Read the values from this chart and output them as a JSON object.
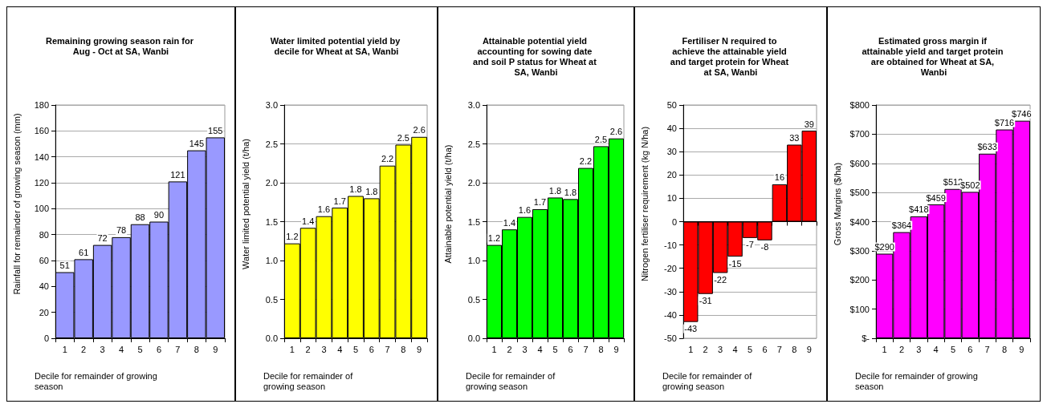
{
  "chart_data": [
    {
      "type": "bar",
      "title": "Remaining growing season rain for Aug - Oct at SA, Wanbi",
      "xlabel": "Decile for remainder of growing season",
      "ylabel": "Rainfall for remainder of growing season (mm)",
      "categories": [
        "1",
        "2",
        "3",
        "4",
        "5",
        "6",
        "7",
        "8",
        "9"
      ],
      "values": [
        51,
        61,
        72,
        78,
        88,
        90,
        121,
        145,
        155
      ],
      "color": "#9999ff",
      "ylim": [
        0,
        180
      ],
      "yticks": [
        0,
        20,
        40,
        60,
        80,
        100,
        120,
        140,
        160,
        180
      ],
      "grid": "y",
      "data_labels": true
    },
    {
      "type": "bar",
      "title": "Water limited potential yield by decile for Wheat at SA, Wanbi",
      "xlabel": "Decile for remainder of growing season",
      "ylabel": "Water limited potential yield (t/ha)",
      "categories": [
        "1",
        "2",
        "3",
        "4",
        "5",
        "6",
        "7",
        "8",
        "9"
      ],
      "values": [
        1.22,
        1.42,
        1.57,
        1.68,
        1.83,
        1.8,
        2.22,
        2.49,
        2.59
      ],
      "value_labels": [
        "1.2",
        "1.4",
        "1.6",
        "1.7",
        "1.8",
        "1.8",
        "2.2",
        "2.5",
        "2.6"
      ],
      "color": "#ffff00",
      "ylim": [
        0,
        3
      ],
      "yticks": [
        {
          "value": 0,
          "label": "0.0"
        },
        0.5,
        {
          "value": 1,
          "label": "1.0"
        },
        1.5,
        {
          "value": 2,
          "label": "2.0"
        },
        2.5,
        {
          "value": 3,
          "label": "3.0"
        }
      ],
      "grid": "y"
    },
    {
      "type": "bar",
      "title": "Attainable potential yield accounting for sowing date and soil P status for Wheat at SA, Wanbi",
      "xlabel": "Decile for remainder of growing season",
      "ylabel": "Attainable potential yield (t/ha)",
      "categories": [
        "1",
        "2",
        "3",
        "4",
        "5",
        "6",
        "7",
        "8",
        "9"
      ],
      "values": [
        1.2,
        1.4,
        1.56,
        1.66,
        1.81,
        1.79,
        2.19,
        2.47,
        2.57
      ],
      "value_labels": [
        "1.2",
        "1.4",
        "1.6",
        "1.7",
        "1.8",
        "1.8",
        "2.2",
        "2.5",
        "2.6"
      ],
      "color": "#00ff00",
      "ylim": [
        0,
        3
      ],
      "yticks": [
        {
          "value": 0,
          "label": "0.0"
        },
        0.5,
        {
          "value": 1,
          "label": "1.0"
        },
        1.5,
        {
          "value": 2,
          "label": "2.0"
        },
        2.5,
        {
          "value": 3,
          "label": "3.0"
        }
      ],
      "grid": "y"
    },
    {
      "type": "bar",
      "title": "Fertiliser N required to achieve the attainable yield and target protein for Wheat at SA, Wanbi",
      "xlabel": "Decile for remainder of growing season",
      "ylabel": "Nitrogen fertiliser requirement (kg N/ha)",
      "categories": [
        "1",
        "2",
        "3",
        "4",
        "5",
        "6",
        "7",
        "8",
        "9"
      ],
      "values": [
        -43,
        -31,
        -22,
        -15,
        -7,
        -8,
        16,
        33,
        39
      ],
      "color": "#ff0000",
      "ylim": [
        -50,
        50
      ],
      "yticks": [
        -50,
        -40,
        -30,
        -20,
        -10,
        0,
        10,
        20,
        30,
        40,
        50
      ],
      "grid": "y",
      "data_labels": true
    },
    {
      "type": "bar",
      "title": "Estimated gross margin if attainable yield and target protein are obtained for Wheat at SA, Wanbi",
      "xlabel": "Decile for remainder of growing season",
      "ylabel": "Gross Margins ($/ha)",
      "categories": [
        "1",
        "2",
        "3",
        "4",
        "5",
        "6",
        "7",
        "8",
        "9"
      ],
      "values": [
        290,
        364,
        418,
        459,
        512,
        502,
        633,
        716,
        746
      ],
      "value_labels": [
        "$290",
        "$364",
        "$418",
        "$459",
        "$512",
        "$502",
        "$633",
        "$716",
        "$746"
      ],
      "color": "#ff00ff",
      "ylim": [
        0,
        800
      ],
      "yticks": [
        {
          "value": 0,
          "label": "$-"
        },
        {
          "value": 100,
          "label": "$100"
        },
        {
          "value": 200,
          "label": "$200"
        },
        {
          "value": 300,
          "label": "$300"
        },
        {
          "value": 400,
          "label": "$400"
        },
        {
          "value": 500,
          "label": "$500"
        },
        {
          "value": 600,
          "label": "$600"
        },
        {
          "value": 700,
          "label": "$700"
        },
        {
          "value": 800,
          "label": "$800"
        }
      ],
      "grid": "y"
    }
  ]
}
